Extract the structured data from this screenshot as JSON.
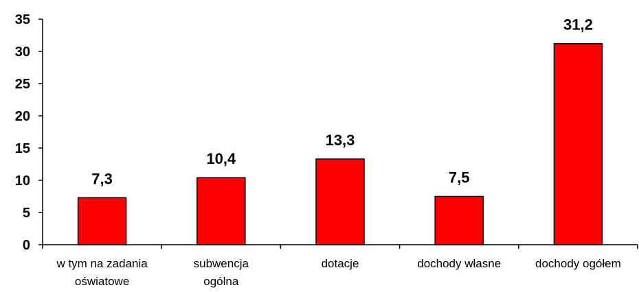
{
  "chart_data": {
    "type": "bar",
    "categories": [
      [
        "w tym na zadania",
        "oświatowe"
      ],
      [
        "subwencja",
        "ogólna"
      ],
      [
        "dotacje"
      ],
      [
        "dochody własne"
      ],
      [
        "dochody ogółem"
      ]
    ],
    "values": [
      7.3,
      10.4,
      13.3,
      7.5,
      31.2
    ],
    "data_labels": [
      "7,3",
      "10,4",
      "13,3",
      "7,5",
      "31,2"
    ],
    "ylim": [
      0,
      35
    ],
    "yticks": [
      0,
      5,
      10,
      15,
      20,
      25,
      30,
      35
    ],
    "bar_color": "#ff0000",
    "title": "",
    "xlabel": "",
    "ylabel": "",
    "grid": false,
    "legend": "none"
  }
}
